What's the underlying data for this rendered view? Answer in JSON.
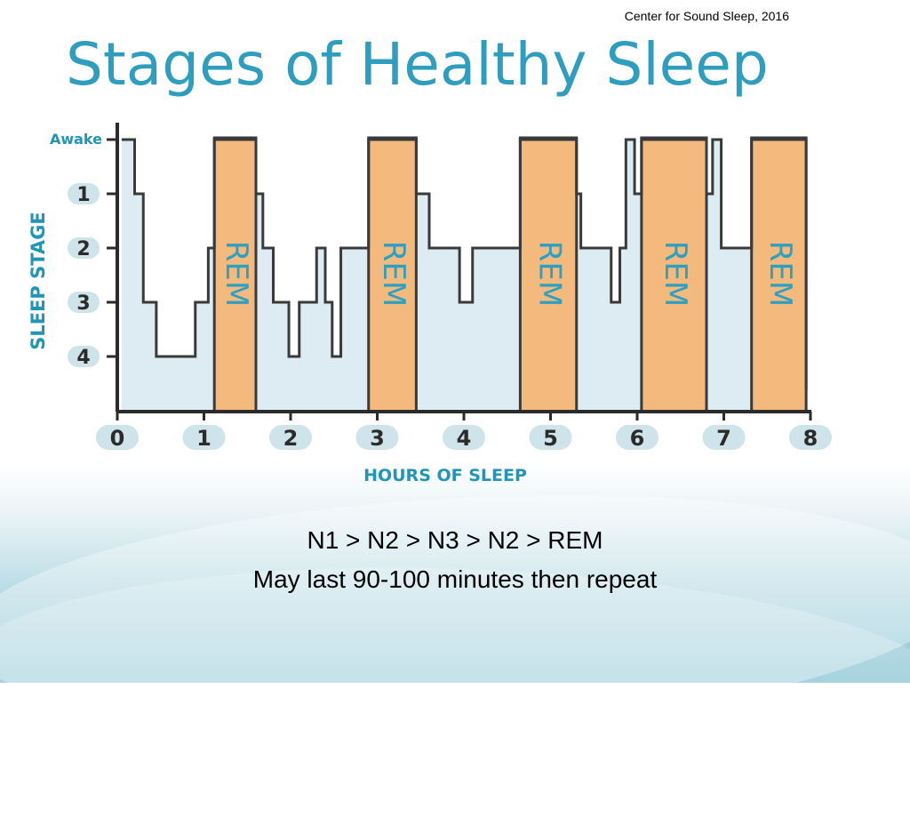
{
  "source_note": "Center for Sound Sleep, 2016",
  "caption": {
    "line1": "N1 > N2 > N3 > N2 > REM",
    "line2": "May last 90-100 minutes then repeat"
  },
  "colors": {
    "title": "#2f9dbd",
    "axis_label": "#1f95b8",
    "hypnogram_line": "#3a3a3a",
    "hypnogram_fill": "#dcecf2",
    "rem_fill": "#f4b97d",
    "rem_text": "#2aa0c2",
    "tick_bubble": "#cfe3ea"
  },
  "chart_data": {
    "type": "line",
    "title": "Stages of Healthy Sleep",
    "xlabel": "HOURS OF SLEEP",
    "ylabel": "SLEEP STAGE",
    "x_ticks": [
      "0",
      "1",
      "2",
      "3",
      "4",
      "5",
      "6",
      "7",
      "8"
    ],
    "y_ticks": [
      "Awake",
      "1",
      "2",
      "3",
      "4"
    ],
    "y_tick_values": [
      0,
      1,
      2,
      3,
      4
    ],
    "xlim": [
      0,
      8
    ],
    "ylim": [
      0,
      4.6
    ],
    "step_points": [
      [
        0.05,
        0
      ],
      [
        0.2,
        0
      ],
      [
        0.2,
        1
      ],
      [
        0.3,
        1
      ],
      [
        0.3,
        3
      ],
      [
        0.45,
        3
      ],
      [
        0.45,
        4
      ],
      [
        0.9,
        4
      ],
      [
        0.9,
        3
      ],
      [
        1.05,
        3
      ],
      [
        1.05,
        2
      ],
      [
        1.12,
        2
      ],
      [
        1.12,
        0
      ],
      [
        1.6,
        0
      ],
      [
        1.6,
        1
      ],
      [
        1.68,
        1
      ],
      [
        1.68,
        2
      ],
      [
        1.8,
        2
      ],
      [
        1.8,
        3
      ],
      [
        1.98,
        3
      ],
      [
        1.98,
        4
      ],
      [
        2.1,
        4
      ],
      [
        2.1,
        3
      ],
      [
        2.3,
        3
      ],
      [
        2.3,
        2
      ],
      [
        2.4,
        2
      ],
      [
        2.4,
        3
      ],
      [
        2.48,
        3
      ],
      [
        2.48,
        4
      ],
      [
        2.58,
        4
      ],
      [
        2.58,
        2
      ],
      [
        2.9,
        2
      ],
      [
        2.9,
        0
      ],
      [
        3.45,
        0
      ],
      [
        3.45,
        1
      ],
      [
        3.6,
        1
      ],
      [
        3.6,
        2
      ],
      [
        3.95,
        2
      ],
      [
        3.95,
        3
      ],
      [
        4.1,
        3
      ],
      [
        4.1,
        2
      ],
      [
        4.65,
        2
      ],
      [
        4.65,
        0
      ],
      [
        5.3,
        0
      ],
      [
        5.3,
        1
      ],
      [
        5.35,
        1
      ],
      [
        5.35,
        2
      ],
      [
        5.7,
        2
      ],
      [
        5.7,
        3
      ],
      [
        5.8,
        3
      ],
      [
        5.8,
        2
      ],
      [
        5.87,
        2
      ],
      [
        5.87,
        0
      ],
      [
        5.97,
        0
      ],
      [
        5.97,
        1
      ],
      [
        6.05,
        1
      ],
      [
        6.05,
        0
      ],
      [
        6.8,
        0
      ],
      [
        6.8,
        1
      ],
      [
        6.87,
        1
      ],
      [
        6.87,
        0
      ],
      [
        6.97,
        0
      ],
      [
        6.97,
        2
      ],
      [
        7.32,
        2
      ],
      [
        7.32,
        0
      ],
      [
        7.95,
        0
      ],
      [
        7.95,
        4.6
      ]
    ],
    "rem_periods": [
      {
        "label": "REM",
        "start": 1.12,
        "end": 1.6
      },
      {
        "label": "REM",
        "start": 2.9,
        "end": 3.45
      },
      {
        "label": "REM",
        "start": 4.65,
        "end": 5.3
      },
      {
        "label": "REM",
        "start": 6.05,
        "end": 6.8
      },
      {
        "label": "REM",
        "start": 7.32,
        "end": 7.95
      }
    ],
    "grid": false,
    "legend": "none"
  }
}
